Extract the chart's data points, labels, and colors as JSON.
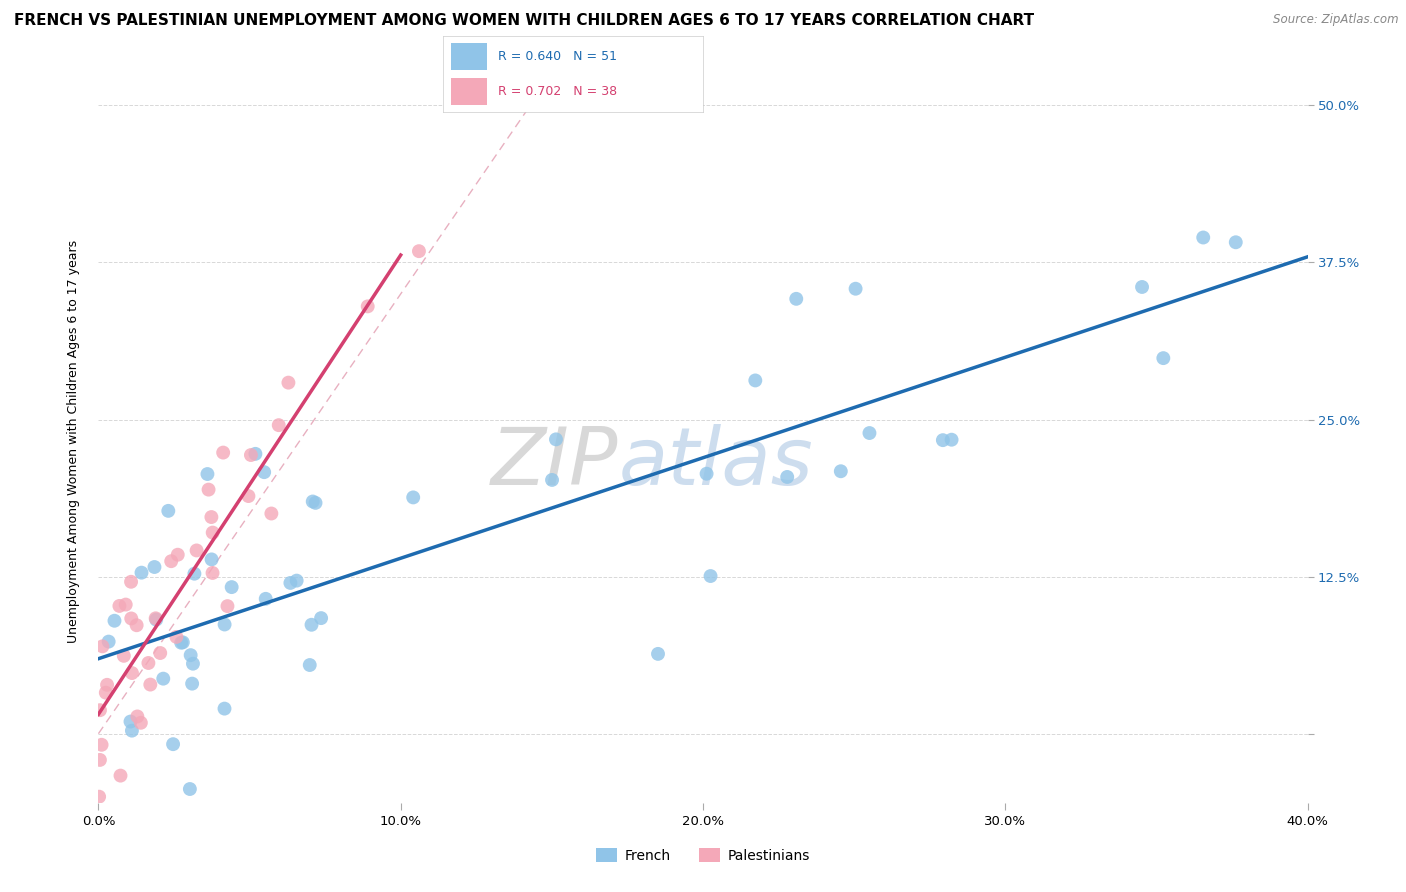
{
  "title": "FRENCH VS PALESTINIAN UNEMPLOYMENT AMONG WOMEN WITH CHILDREN AGES 6 TO 17 YEARS CORRELATION CHART",
  "source": "Source: ZipAtlas.com",
  "ylabel": "Unemployment Among Women with Children Ages 6 to 17 years",
  "xlim": [
    0.0,
    0.4
  ],
  "ylim": [
    -0.055,
    0.52
  ],
  "xticks": [
    0.0,
    0.1,
    0.2,
    0.3,
    0.4
  ],
  "xtick_labels": [
    "0.0%",
    "10.0%",
    "20.0%",
    "30.0%",
    "40.0%"
  ],
  "ytick_vals": [
    0.0,
    0.125,
    0.25,
    0.375,
    0.5
  ],
  "ytick_labels": [
    "",
    "12.5%",
    "25.0%",
    "37.5%",
    "50.0%"
  ],
  "french_R": 0.64,
  "french_N": 51,
  "palestinian_R": 0.702,
  "palestinian_N": 38,
  "french_dot_color": "#90c4e8",
  "palestinian_dot_color": "#f4a8b8",
  "french_line_color": "#1e6bb0",
  "palestinian_line_color": "#d44070",
  "ref_line_color": "#e8b0c0",
  "background_color": "#ffffff",
  "watermark_zip": "ZIP",
  "watermark_atlas": "atlas",
  "watermark_color": "#b8cfe8",
  "grid_color": "#d8d8d8",
  "legend_french_label": "French",
  "legend_palestinian_label": "Palestinians",
  "title_fontsize": 11,
  "axis_label_fontsize": 9,
  "tick_fontsize": 9.5,
  "source_fontsize": 8.5
}
